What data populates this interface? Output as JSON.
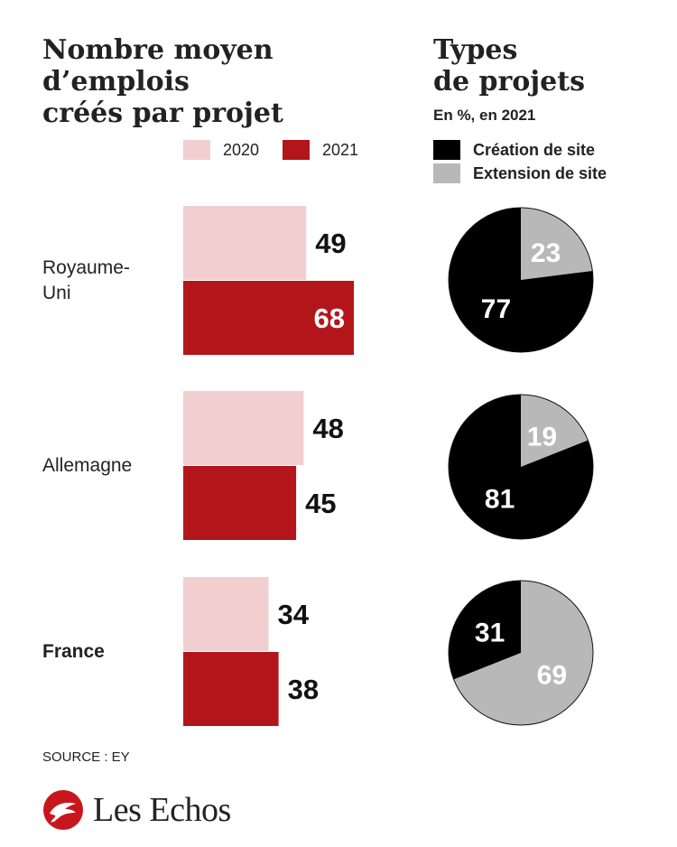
{
  "colors": {
    "bar_2020": "#f1cfd0",
    "bar_2021": "#b3161a",
    "pie_creation": "#000000",
    "pie_extension": "#b8b8b8",
    "logo_red": "#c8161d",
    "text": "#222222"
  },
  "left_title": [
    "Nombre moyen",
    "d’emplois",
    "créés par projet"
  ],
  "right_title": [
    "Types",
    "de projets"
  ],
  "right_subtitle": "En %, en 2021",
  "bar_legend": [
    "2020",
    "2021"
  ],
  "pie_legend": [
    "Création de site",
    "Extension de site"
  ],
  "source": "SOURCE : EY",
  "brand": {
    "name": "Les Echos",
    "icon": "les-echos-logo-icon"
  },
  "chart_data": [
    {
      "type": "bar",
      "title": "Nombre moyen d’emplois créés par projet",
      "orientation": "horizontal",
      "categories": [
        "Royaume-Uni",
        "Allemagne",
        "France"
      ],
      "category_labels": [
        [
          "Royaume-",
          "Uni"
        ],
        [
          "Allemagne"
        ],
        [
          "France"
        ]
      ],
      "series": [
        {
          "name": "2020",
          "values": [
            49,
            48,
            34
          ]
        },
        {
          "name": "2021",
          "values": [
            68,
            45,
            38
          ]
        }
      ],
      "xlim": [
        0,
        68
      ],
      "grid": false,
      "legend": "top"
    },
    {
      "type": "pie",
      "title": "Types de projets",
      "subtitle": "En %, en 2021",
      "categories": [
        "Royaume-Uni",
        "Allemagne",
        "France"
      ],
      "series": [
        {
          "name": "Création de site",
          "values": [
            77,
            81,
            31
          ]
        },
        {
          "name": "Extension de site",
          "values": [
            23,
            19,
            69
          ]
        }
      ],
      "legend": "top"
    }
  ]
}
